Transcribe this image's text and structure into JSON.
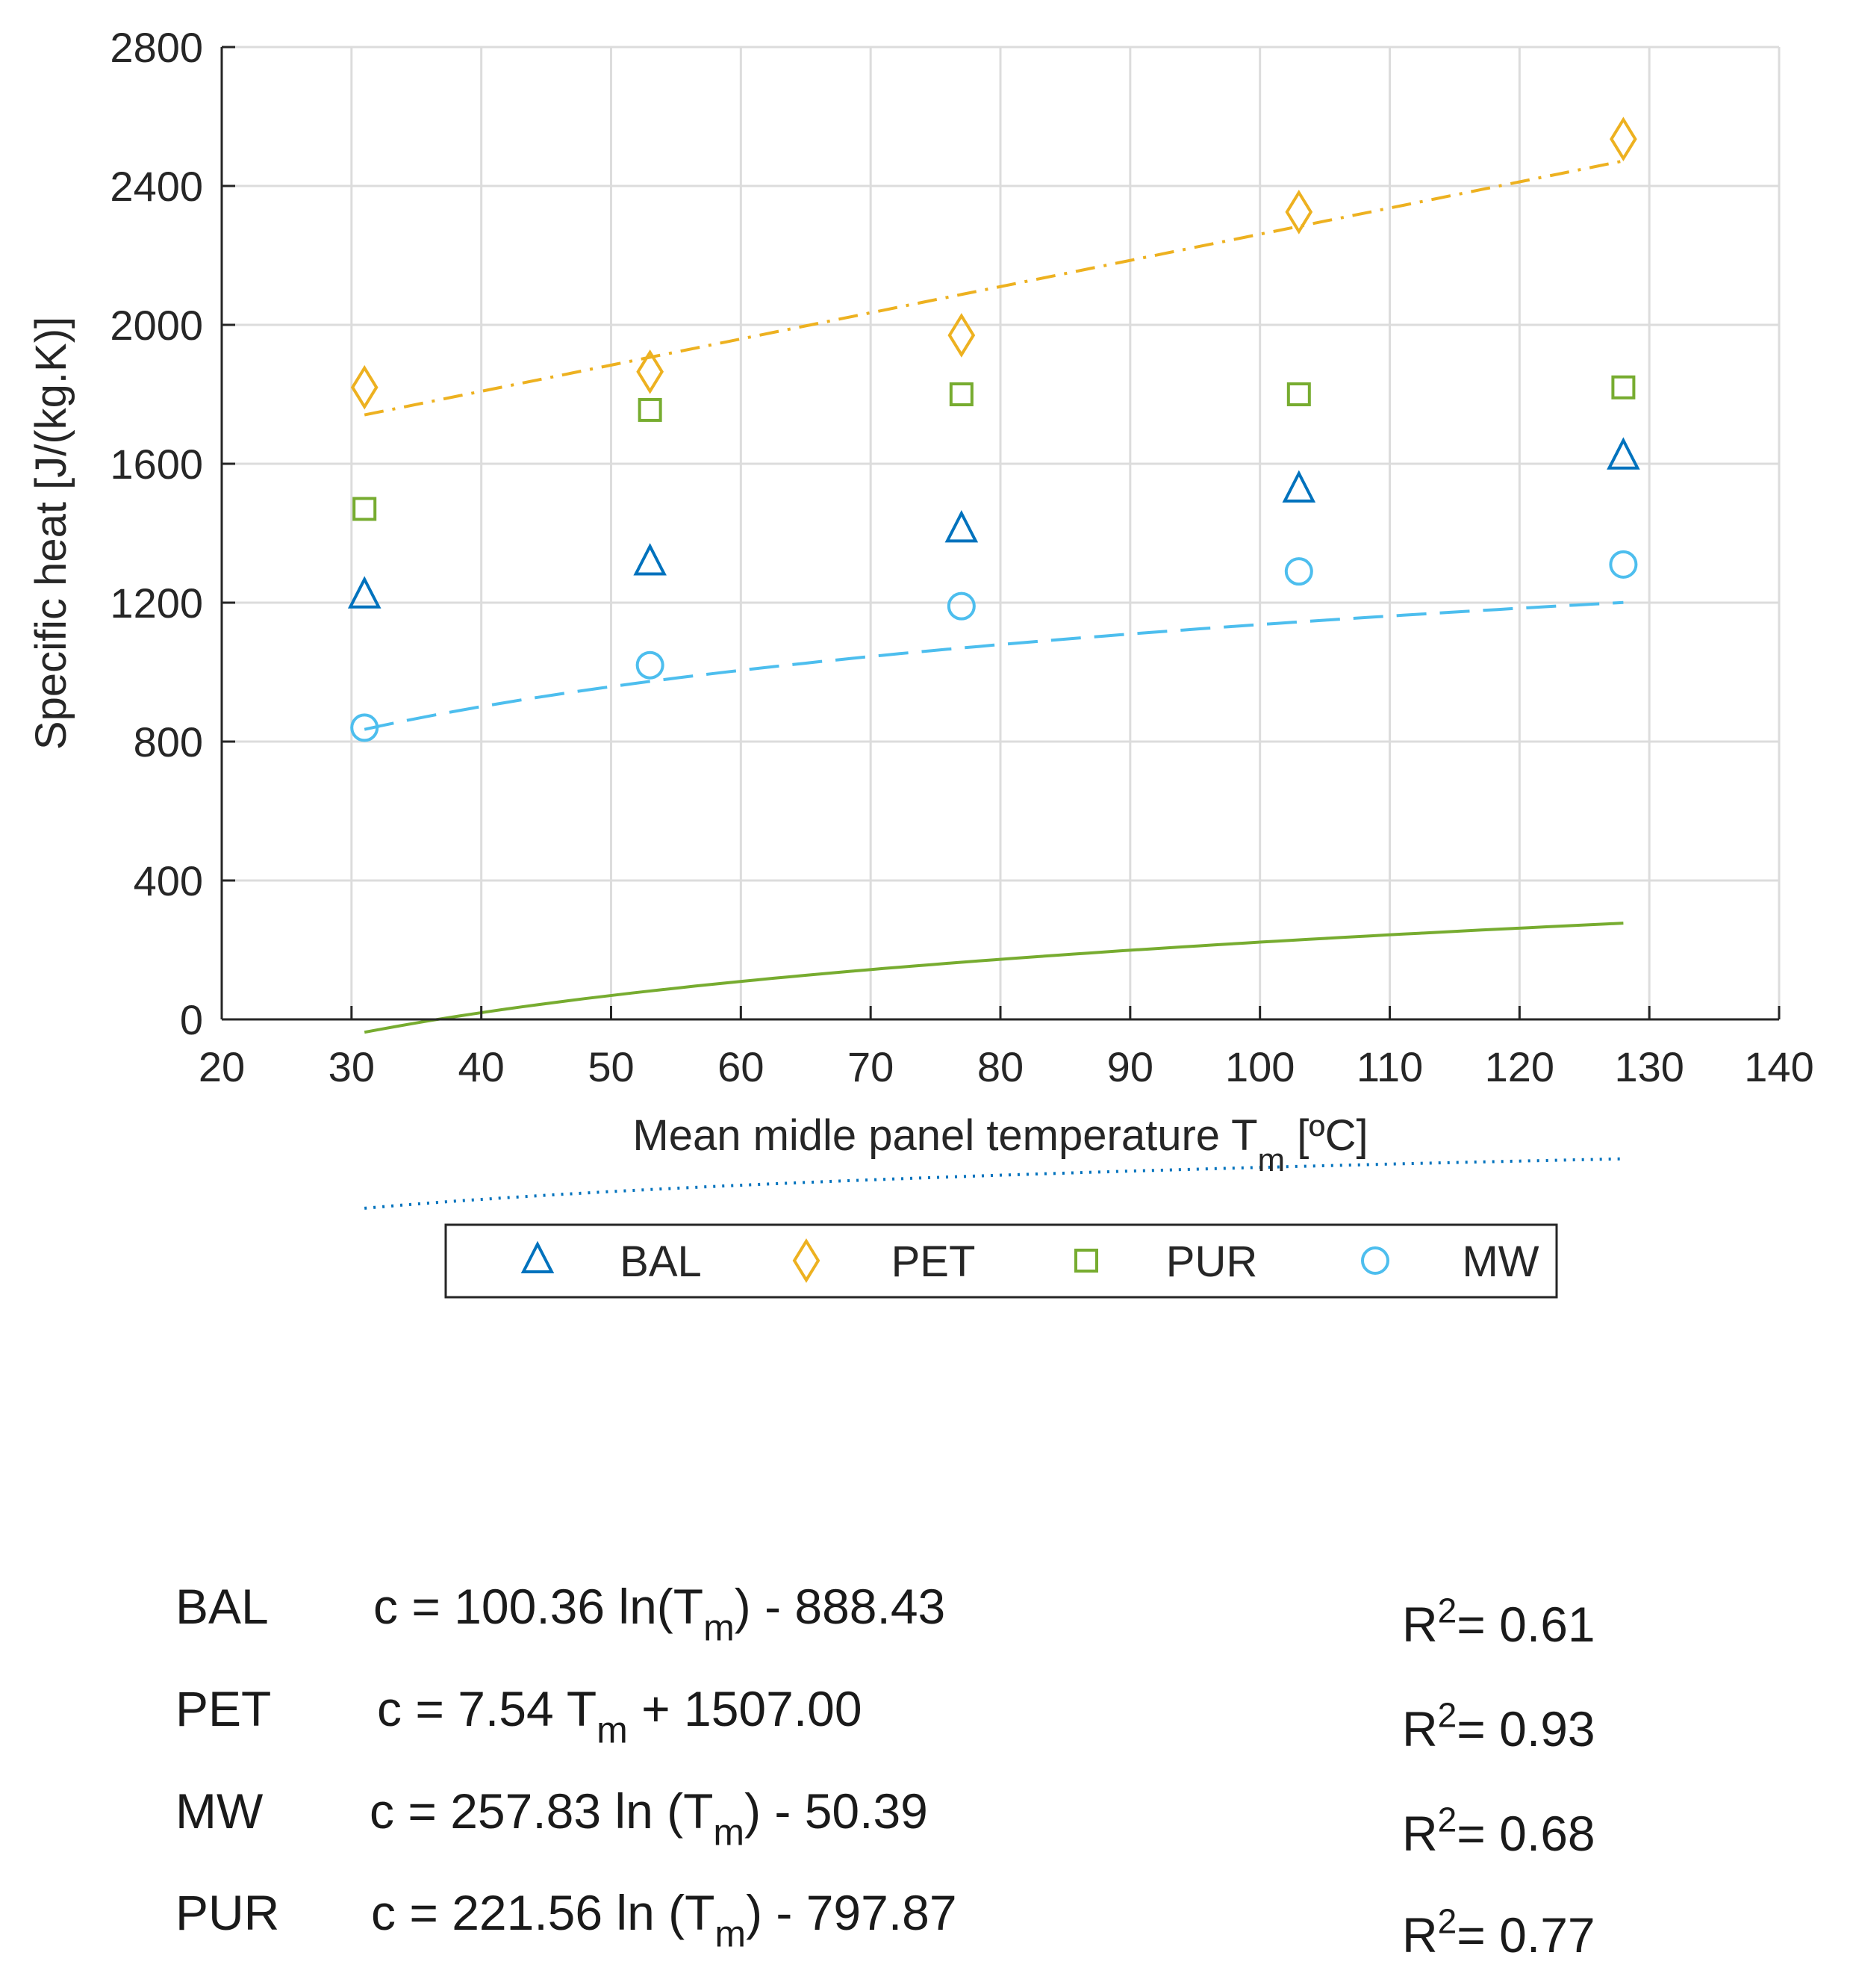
{
  "chart_data": {
    "type": "scatter",
    "xlabel": {
      "main": "Mean midle panel temperature T",
      "sub": "m",
      "tail": " [ºC]"
    },
    "ylabel": "Specific heat [J/(kg.K)]",
    "xlim": [
      20,
      140
    ],
    "ylim": [
      0,
      2800
    ],
    "xticks": [
      20,
      30,
      40,
      50,
      60,
      70,
      80,
      90,
      100,
      110,
      120,
      130,
      140
    ],
    "yticks": [
      0,
      400,
      800,
      1200,
      1600,
      2000,
      2400,
      2800
    ],
    "grid": true,
    "legend_position": "below",
    "x": [
      31,
      53,
      77,
      103,
      128
    ],
    "series": [
      {
        "name": "BAL",
        "marker": "triangle",
        "color": "#0072BD",
        "values": [
          1220,
          1315,
          1410,
          1525,
          1620
        ],
        "fit": {
          "kind": "log",
          "a": 100.36,
          "b": -888.43,
          "style": "dotted"
        }
      },
      {
        "name": "PET",
        "marker": "diamond",
        "color": "#EDB120",
        "values": [
          1820,
          1865,
          1970,
          2325,
          2535
        ],
        "fit": {
          "kind": "linear",
          "a": 7.54,
          "b": 1507.0,
          "style": "dashdot"
        }
      },
      {
        "name": "PUR",
        "marker": "square",
        "color": "#77AC30",
        "values": [
          1470,
          1755,
          1800,
          1800,
          1820
        ],
        "fit": {
          "kind": "log",
          "a": 221.56,
          "b": -797.87,
          "style": "solid"
        }
      },
      {
        "name": "MW",
        "marker": "circle",
        "color": "#4DBEEE",
        "values": [
          840,
          1020,
          1190,
          1290,
          1310
        ],
        "fit": {
          "kind": "log",
          "a": 257.83,
          "b": -50.39,
          "style": "dashed"
        }
      }
    ]
  },
  "equations": [
    {
      "name": "BAL",
      "pre": "c = 100.36 ln(T",
      "sub": "m",
      "post": ") - 888.43",
      "r2_label": "R",
      "r2_sup": "2",
      "r2_value": "= 0.61"
    },
    {
      "name": "PET",
      "pre": "c = 7.54 T",
      "sub": "m",
      "post": " + 1507.00",
      "r2_label": "R",
      "r2_sup": "2",
      "r2_value": "= 0.93"
    },
    {
      "name": "MW",
      "pre": "c = 257.83 ln (T",
      "sub": "m",
      "post": ") - 50.39",
      "r2_label": "R",
      "r2_sup": "2",
      "r2_value": "= 0.68"
    },
    {
      "name": "PUR",
      "pre": "c = 221.56 ln (T",
      "sub": "m",
      "post": ") - 797.87",
      "r2_label": "R",
      "r2_sup": "2",
      "r2_value": "= 0.77"
    }
  ]
}
